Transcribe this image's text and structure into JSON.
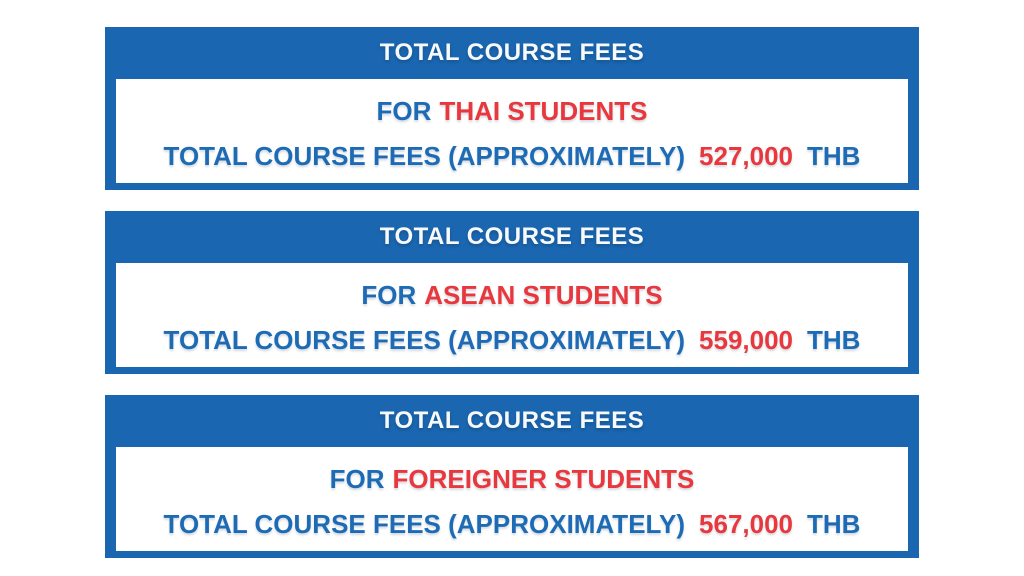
{
  "colors": {
    "panel_blue": "#1A66B0",
    "text_blue": "#1E6BB5",
    "text_red": "#E8383E",
    "title_white": "#F7F9FB"
  },
  "panels": [
    {
      "title": "TOTAL COURSE FEES",
      "audience_prefix": "FOR",
      "audience": "THAI STUDENTS",
      "fees_label": "TOTAL COURSE FEES (APPROXIMATELY)",
      "amount": "527,000",
      "currency": "THB"
    },
    {
      "title": "TOTAL COURSE FEES",
      "audience_prefix": "FOR",
      "audience": "ASEAN STUDENTS",
      "fees_label": "TOTAL COURSE FEES (APPROXIMATELY)",
      "amount": "559,000",
      "currency": "THB"
    },
    {
      "title": "TOTAL COURSE FEES",
      "audience_prefix": "FOR",
      "audience": "FOREIGNER STUDENTS",
      "fees_label": "TOTAL COURSE FEES (APPROXIMATELY)",
      "amount": "567,000",
      "currency": "THB"
    }
  ]
}
